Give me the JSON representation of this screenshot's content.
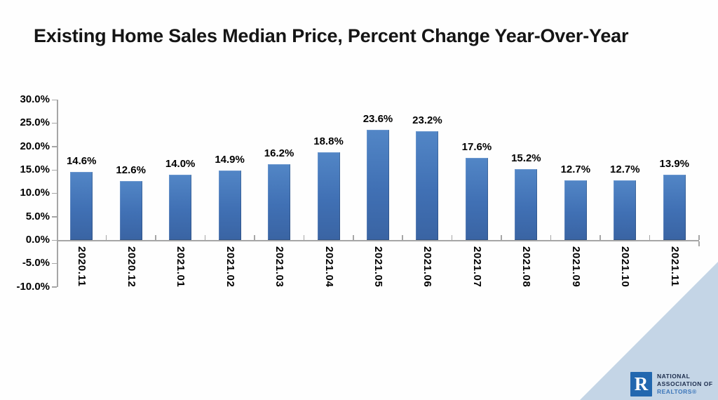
{
  "title": "Existing Home Sales Median Price, Percent Change Year-Over-Year",
  "chart_data": {
    "type": "bar",
    "title": "Existing Home Sales Median Price, Percent Change Year-Over-Year",
    "categories": [
      "2020.11",
      "2020.12",
      "2021.01",
      "2021.02",
      "2021.03",
      "2021.04",
      "2021.05",
      "2021.06",
      "2021.07",
      "2021.08",
      "2021.09",
      "2021.10",
      "2021.11"
    ],
    "values": [
      14.6,
      12.6,
      14.0,
      14.9,
      16.2,
      18.8,
      23.6,
      23.2,
      17.6,
      15.2,
      12.7,
      12.7,
      13.9
    ],
    "data_labels": [
      "14.6%",
      "12.6%",
      "14.0%",
      "14.9%",
      "16.2%",
      "18.8%",
      "23.6%",
      "23.2%",
      "17.6%",
      "15.2%",
      "12.7%",
      "12.7%",
      "13.9%"
    ],
    "y_tick_labels": [
      "30.0%",
      "25.0%",
      "20.0%",
      "15.0%",
      "10.0%",
      "5.0%",
      "0.0%",
      "-5.0%",
      "-10.0%"
    ],
    "y_tick_values": [
      30,
      25,
      20,
      15,
      10,
      5,
      0,
      -5,
      -10
    ],
    "ylim": [
      -10,
      30
    ],
    "xlabel": "",
    "ylabel": "",
    "grid": false,
    "legend_position": "none",
    "colors": {
      "bar_top": "#5286c6",
      "bar_mid": "#4070b4",
      "bar_bottom": "#3a64a3",
      "axis": "#a6a6a6",
      "labels": "#000000"
    }
  },
  "footer": {
    "triangle_color": "#c4d5e6",
    "logo": {
      "mark_letter": "R",
      "square_color": "#2267af",
      "line1": "NATIONAL",
      "line2": "ASSOCIATION OF",
      "line3": "REALTORS®",
      "text_dark_color": "#1c2c4c",
      "text_blue_color": "#3c76b9"
    }
  }
}
